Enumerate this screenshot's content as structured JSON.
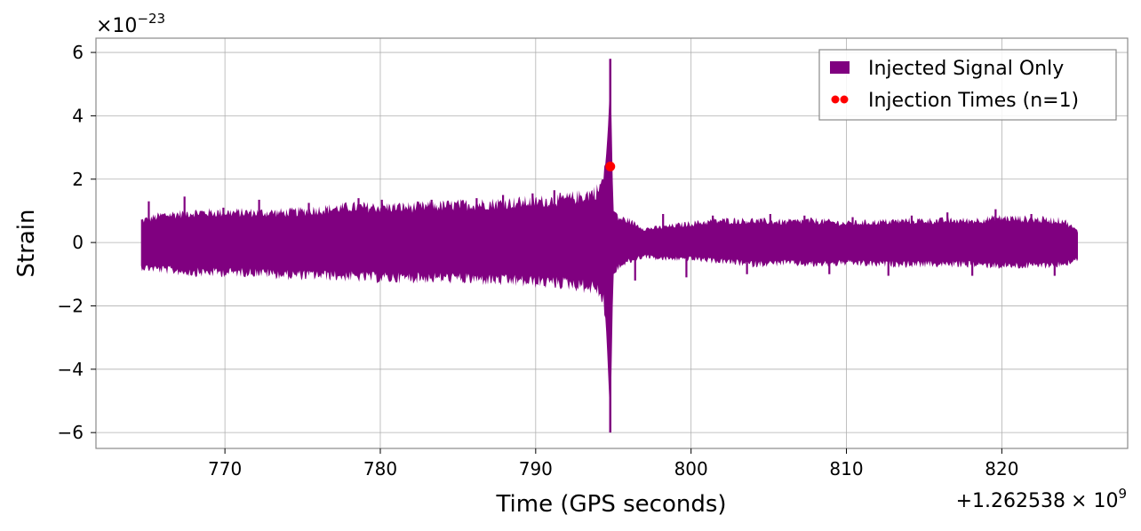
{
  "chart_data": {
    "type": "line",
    "title": "",
    "xlabel": "Time (GPS seconds)",
    "ylabel": "Strain",
    "x_offset_label": "+1.262538",
    "x_offset_multiplier": "× 10",
    "x_offset_exponent": "9",
    "y_scale_label": "×10",
    "y_scale_exponent": "−23",
    "xlim": [
      761.7,
      828.1
    ],
    "ylim": [
      -6.5,
      6.45
    ],
    "x_ticks": [
      770,
      780,
      790,
      800,
      810,
      820
    ],
    "x_tick_labels": [
      "770",
      "780",
      "790",
      "800",
      "810",
      "820"
    ],
    "y_ticks": [
      -6,
      -4,
      -2,
      0,
      2,
      4,
      6
    ],
    "y_tick_labels": [
      "−6",
      "−4",
      "−2",
      "0",
      "2",
      "4",
      "6"
    ],
    "grid": true,
    "legend_position": "top-right",
    "series": [
      {
        "name": "Injected Signal Only",
        "color": "#800080",
        "x_start": 764.6,
        "x_end": 824.9,
        "envelope": {
          "x": [
            764.6,
            766,
            768,
            770,
            772,
            774,
            776,
            778,
            780,
            782,
            784,
            786,
            788,
            790,
            792,
            793,
            794,
            794.5,
            794.7,
            794.8,
            795.0,
            795.3,
            796,
            797,
            798,
            800,
            802,
            804,
            806,
            808,
            810,
            812,
            814,
            816,
            818,
            820,
            822,
            824,
            824.9
          ],
          "upper": [
            0.8,
            1.0,
            1.1,
            1.1,
            1.1,
            1.1,
            1.2,
            1.3,
            1.3,
            1.3,
            1.35,
            1.4,
            1.45,
            1.5,
            1.6,
            1.7,
            1.9,
            2.5,
            4.0,
            5.8,
            1.0,
            0.9,
            0.8,
            0.5,
            0.55,
            0.7,
            0.8,
            0.8,
            0.75,
            0.8,
            0.7,
            0.75,
            0.8,
            0.8,
            0.8,
            0.9,
            0.85,
            0.8,
            0.4
          ],
          "lower": [
            -0.9,
            -1.0,
            -1.1,
            -1.1,
            -1.1,
            -1.2,
            -1.2,
            -1.25,
            -1.3,
            -1.3,
            -1.3,
            -1.35,
            -1.4,
            -1.45,
            -1.5,
            -1.6,
            -1.7,
            -2.4,
            -4.5,
            -6.0,
            -1.0,
            -0.9,
            -0.7,
            -0.5,
            -0.6,
            -0.6,
            -0.7,
            -0.8,
            -0.75,
            -0.8,
            -0.75,
            -0.8,
            -0.8,
            -0.8,
            -0.8,
            -0.85,
            -0.85,
            -0.8,
            -0.6
          ]
        },
        "peaks": {
          "x": [
            765.1,
            767.4,
            769.9,
            772.2,
            775.4,
            778.6,
            780.1,
            783.3,
            786.2,
            787.9,
            789.8,
            791.2,
            796.4,
            798.2,
            799.7,
            801.4,
            803.6,
            805.1,
            807.3,
            808.9,
            810.4,
            812.7,
            814.2,
            816.5,
            818.1,
            819.6,
            821.9,
            823.4
          ],
          "y": [
            1.3,
            1.45,
            1.1,
            1.35,
            1.25,
            1.4,
            1.35,
            1.35,
            1.4,
            1.5,
            1.55,
            1.65,
            -1.2,
            0.9,
            -1.1,
            0.85,
            -1.0,
            0.9,
            0.85,
            -1.0,
            0.8,
            -1.05,
            0.85,
            0.95,
            -1.05,
            1.05,
            0.9,
            -1.05
          ]
        }
      },
      {
        "name": "Injection Times (n=1)",
        "color": "#ff0000",
        "type": "scatter",
        "points": [
          {
            "x": 794.8,
            "y": 2.4
          }
        ]
      }
    ]
  }
}
